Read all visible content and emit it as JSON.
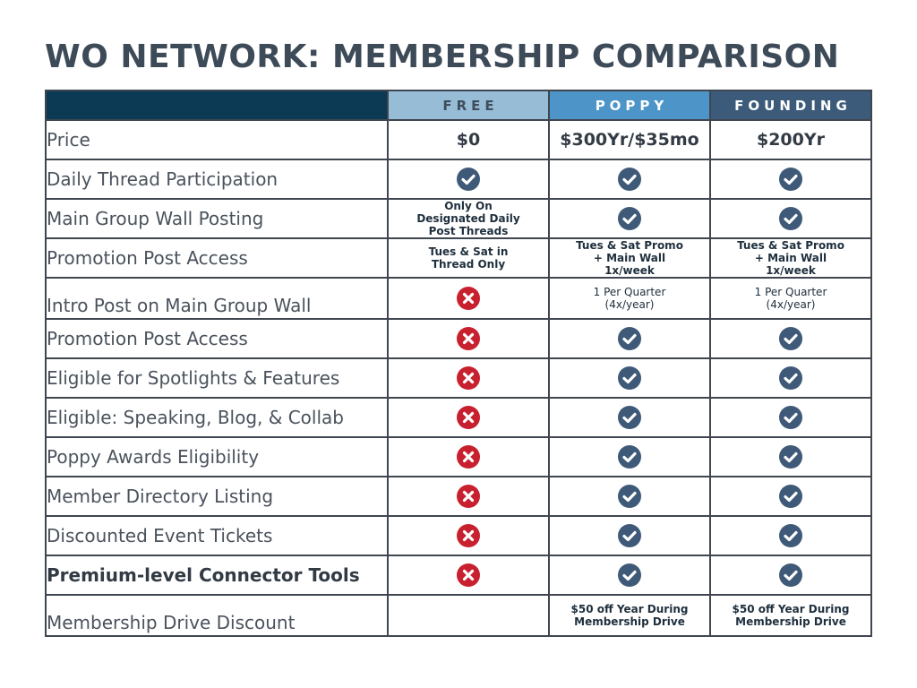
{
  "title": "WO NETWORK: MEMBERSHIP COMPARISON",
  "colors": {
    "header_dark": "#0c3a55",
    "free": "#97bcd6",
    "poppy": "#4d95c9",
    "founding": "#3c5b7b",
    "check": "#3f5a78",
    "cross": "#c8202e"
  },
  "tiers": [
    "FREE",
    "POPPY",
    "FOUNDING"
  ],
  "rows": [
    {
      "feature": "Price",
      "free": "$0",
      "poppy": "$300Yr/$35mo",
      "founding": "$200Yr"
    },
    {
      "feature": "Daily Thread Participation",
      "free": "check-icon",
      "poppy": "check-icon",
      "founding": "check-icon"
    },
    {
      "feature": "Main Group Wall Posting",
      "free": "Only On Designated Daily Post Threads",
      "poppy": "check-icon",
      "founding": "check-icon"
    },
    {
      "feature": "Promotion Post Access",
      "free": "Tues & Sat in Thread Only",
      "poppy": "Tues & Sat Promo + Main Wall 1x/week",
      "founding": "Tues & Sat Promo + Main Wall 1x/week"
    },
    {
      "feature": "Intro Post on Main Group Wall",
      "free": "cross-icon",
      "poppy": "1 Per Quarter (4x/year)",
      "founding": "1 Per Quarter (4x/year)"
    },
    {
      "feature": "Promotion Post Access",
      "free": "cross-icon",
      "poppy": "check-icon",
      "founding": "check-icon"
    },
    {
      "feature": "Eligible for Spotlights & Features",
      "free": "cross-icon",
      "poppy": "check-icon",
      "founding": "check-icon"
    },
    {
      "feature": "Eligible: Speaking, Blog, & Collab",
      "free": "cross-icon",
      "poppy": "check-icon",
      "founding": "check-icon"
    },
    {
      "feature": "Poppy Awards Eligibility",
      "free": "cross-icon",
      "poppy": "check-icon",
      "founding": "check-icon"
    },
    {
      "feature": "Member Directory Listing",
      "free": "cross-icon",
      "poppy": "check-icon",
      "founding": "check-icon"
    },
    {
      "feature": "Discounted Event Tickets",
      "free": "cross-icon",
      "poppy": "check-icon",
      "founding": "check-icon"
    },
    {
      "feature": "Premium-level Connector Tools",
      "free": "cross-icon",
      "poppy": "check-icon",
      "founding": "check-icon"
    },
    {
      "feature": "Membership Drive Discount",
      "free": "",
      "poppy": "$50 off Year During Membership Drive",
      "founding": "$50 off Year During Membership Drive"
    }
  ]
}
